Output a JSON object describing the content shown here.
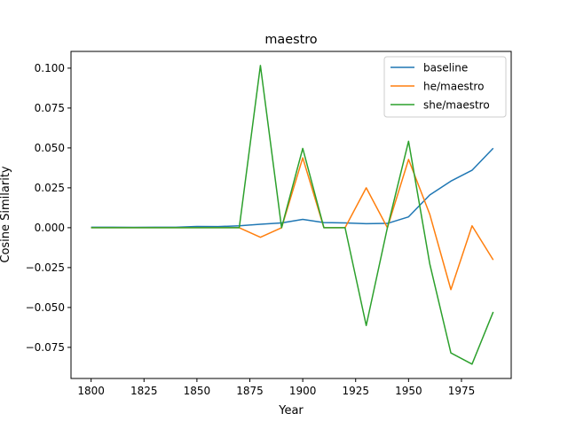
{
  "chart_data": {
    "type": "line",
    "title": "maestro",
    "xlabel": "Year",
    "ylabel": "Cosine Similarity",
    "xlim": [
      1790.5,
      1998.5
    ],
    "ylim": [
      -0.0945,
      0.1105
    ],
    "xticks": [
      1800,
      1825,
      1850,
      1875,
      1900,
      1925,
      1950,
      1975
    ],
    "xtick_labels": [
      "1800",
      "1825",
      "1850",
      "1875",
      "1900",
      "1925",
      "1950",
      "1975"
    ],
    "yticks": [
      -0.075,
      -0.05,
      -0.025,
      0.0,
      0.025,
      0.05,
      0.075,
      0.1
    ],
    "ytick_labels": [
      "−0.075",
      "−0.050",
      "−0.025",
      "0.000",
      "0.025",
      "0.050",
      "0.075",
      "0.100"
    ],
    "grid": false,
    "legend_position": "top-right",
    "x": [
      1800,
      1810,
      1820,
      1830,
      1840,
      1850,
      1860,
      1870,
      1880,
      1890,
      1900,
      1910,
      1920,
      1930,
      1940,
      1950,
      1960,
      1970,
      1980,
      1990
    ],
    "series": [
      {
        "name": "baseline",
        "color": "#1f77b4",
        "values": [
          0.0003,
          0.0003,
          0.0002,
          0.0003,
          0.0003,
          0.0008,
          0.0007,
          0.0012,
          0.0022,
          0.003,
          0.0052,
          0.0032,
          0.003,
          0.0025,
          0.0027,
          0.0068,
          0.0205,
          0.0292,
          0.036,
          0.0498
        ]
      },
      {
        "name": "he/maestro",
        "color": "#ff7f0e",
        "values": [
          0.0,
          0.0,
          0.0,
          0.0,
          0.0,
          0.0,
          0.0,
          0.0,
          -0.006,
          0.0,
          0.0438,
          0.0,
          0.0,
          0.025,
          0.0,
          0.0428,
          0.0085,
          -0.0388,
          0.0012,
          -0.0202
        ]
      },
      {
        "name": "she/maestro",
        "color": "#2ca02c",
        "values": [
          0.0,
          0.0,
          0.0,
          0.0,
          0.0,
          0.0,
          0.0,
          0.0,
          0.1017,
          0.0,
          0.0497,
          0.0,
          0.0,
          -0.0613,
          0.0,
          0.0542,
          -0.0225,
          -0.0785,
          -0.0855,
          -0.0528
        ]
      }
    ]
  }
}
